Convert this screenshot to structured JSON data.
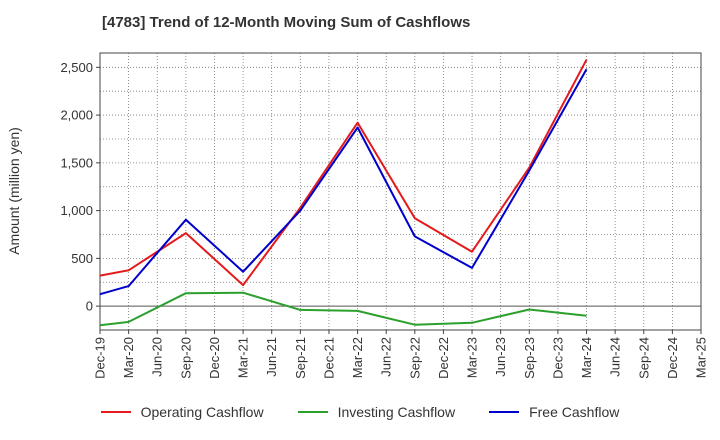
{
  "chart_data": {
    "type": "line",
    "title": "[4783]  Trend of 12-Month Moving Sum of Cashflows",
    "ylabel": "Amount (million yen)",
    "xlabel": "",
    "ylim": [
      -250,
      2650
    ],
    "yticks": [
      0,
      500,
      1000,
      1500,
      2000,
      2500
    ],
    "ytick_labels": [
      "0",
      "500",
      "1,000",
      "1,500",
      "2,000",
      "2,500"
    ],
    "categories": [
      "Dec-19",
      "Mar-20",
      "Jun-20",
      "Sep-20",
      "Dec-20",
      "Mar-21",
      "Jun-21",
      "Sep-21",
      "Dec-21",
      "Mar-22",
      "Jun-22",
      "Sep-22",
      "Dec-22",
      "Mar-23",
      "Jun-23",
      "Sep-23",
      "Dec-23",
      "Mar-24",
      "Jun-24",
      "Sep-24",
      "Dec-24",
      "Mar-25"
    ],
    "grid": true,
    "legend_position": "bottom",
    "series": [
      {
        "name": "Operating Cashflow",
        "color": "#e41a1c",
        "values": [
          320,
          375,
          null,
          765,
          null,
          220,
          null,
          1030,
          null,
          1920,
          null,
          920,
          null,
          570,
          null,
          1450,
          null,
          2580,
          null,
          null,
          null,
          null
        ]
      },
      {
        "name": "Investing Cashflow",
        "color": "#2ca02c",
        "values": [
          -200,
          -165,
          null,
          135,
          null,
          140,
          null,
          -40,
          null,
          -50,
          null,
          -195,
          null,
          -175,
          null,
          -35,
          null,
          -100,
          null,
          null,
          null,
          null
        ]
      },
      {
        "name": "Free Cashflow",
        "color": "#0000cc",
        "values": [
          125,
          210,
          null,
          905,
          null,
          360,
          null,
          1000,
          null,
          1870,
          null,
          730,
          null,
          400,
          null,
          1420,
          null,
          2480,
          null,
          null,
          null,
          null
        ]
      }
    ]
  }
}
